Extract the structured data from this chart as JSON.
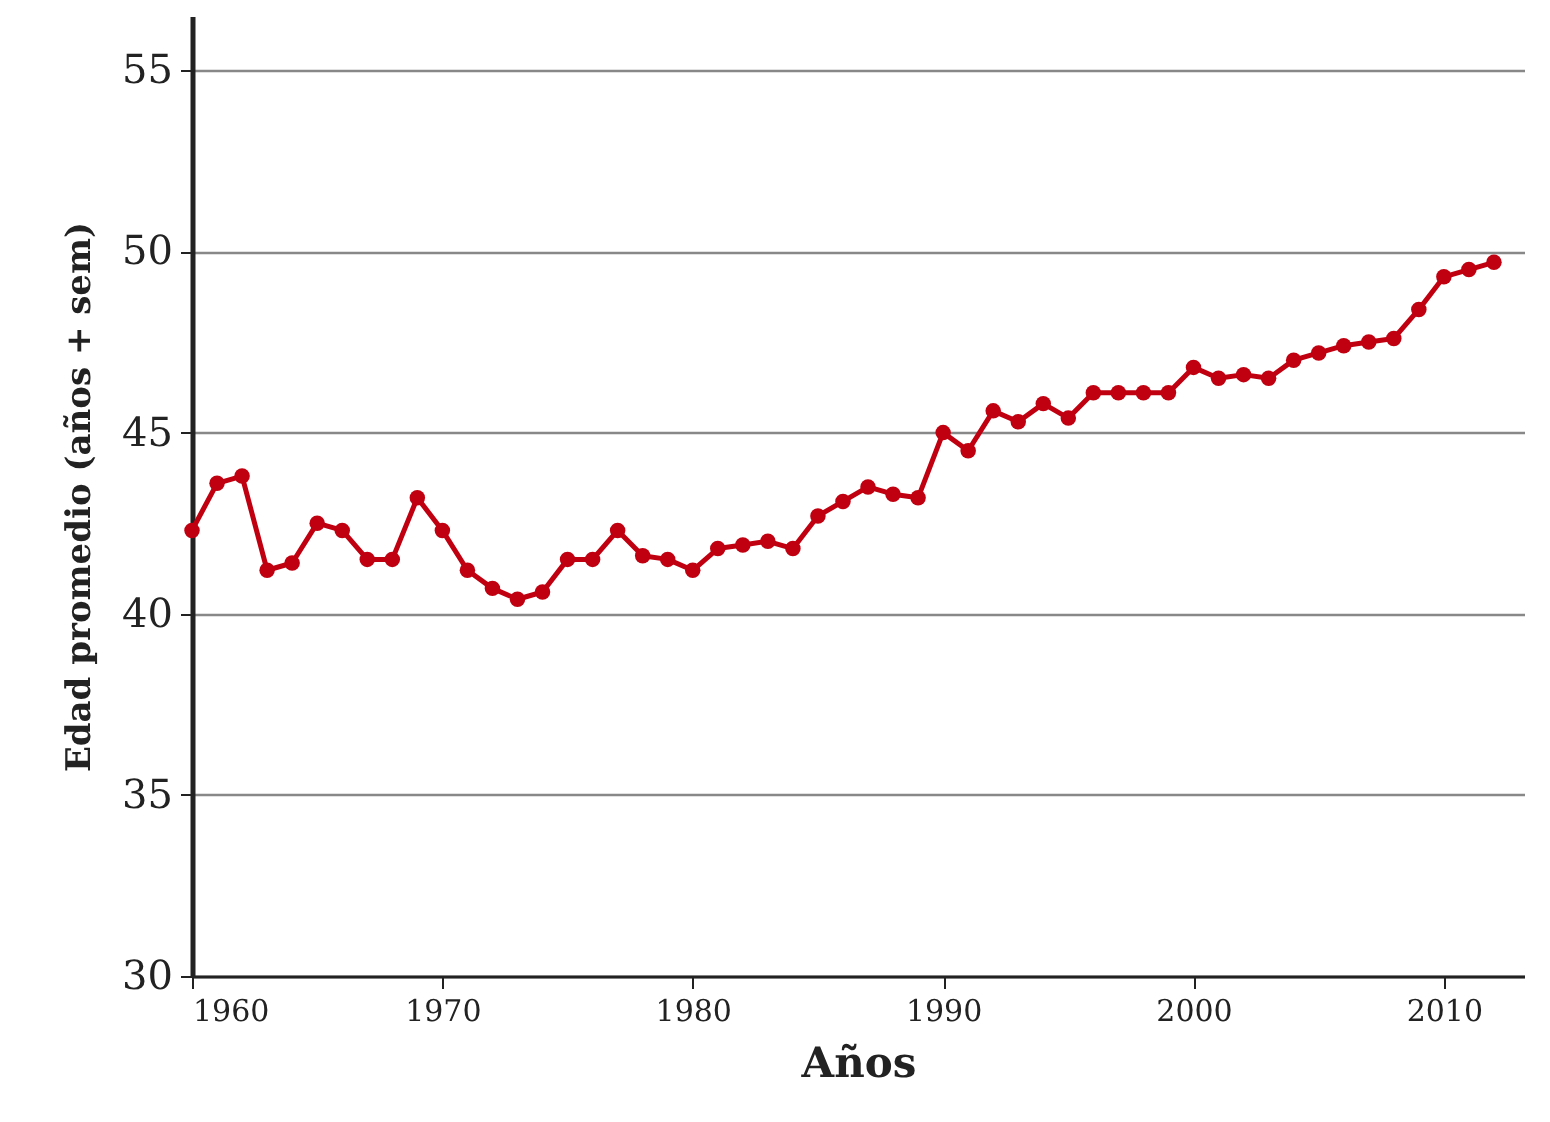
{
  "chart_data": {
    "type": "line",
    "xlabel": "Años",
    "ylabel": "Edad promedio (años + sem)",
    "x": [
      1960,
      1961,
      1962,
      1963,
      1964,
      1965,
      1966,
      1967,
      1968,
      1969,
      1970,
      1971,
      1972,
      1973,
      1974,
      1975,
      1976,
      1977,
      1978,
      1979,
      1980,
      1981,
      1982,
      1983,
      1984,
      1985,
      1986,
      1987,
      1988,
      1989,
      1990,
      1991,
      1992,
      1993,
      1994,
      1995,
      1996,
      1997,
      1998,
      1999,
      2000,
      2001,
      2002,
      2003,
      2004,
      2005,
      2006,
      2007,
      2008,
      2009,
      2010,
      2011,
      2012
    ],
    "series": [
      {
        "color": "#c00010",
        "values": [
          42.3,
          43.6,
          43.8,
          41.2,
          41.4,
          42.5,
          42.3,
          41.5,
          41.5,
          43.2,
          42.3,
          41.2,
          40.7,
          40.4,
          40.6,
          41.5,
          41.5,
          42.3,
          41.6,
          41.5,
          41.2,
          41.8,
          41.9,
          42.0,
          41.8,
          42.7,
          43.1,
          43.5,
          43.3,
          43.2,
          45.0,
          44.5,
          45.6,
          45.3,
          45.8,
          45.4,
          46.1,
          46.1,
          46.1,
          46.1,
          46.8,
          46.5,
          46.6,
          46.5,
          47.0,
          47.2,
          47.4,
          47.5,
          47.6,
          48.4,
          49.3,
          49.5,
          49.7
        ]
      }
    ],
    "xlim": [
      1960,
      2013.2
    ],
    "ylim": [
      30,
      56.5
    ],
    "xticks": [
      1960,
      1970,
      1980,
      1990,
      2000,
      2010
    ],
    "yticks": [
      30,
      35,
      40,
      45,
      50,
      55
    ],
    "grid": "y",
    "marker": "circle",
    "line_style": "solid"
  }
}
